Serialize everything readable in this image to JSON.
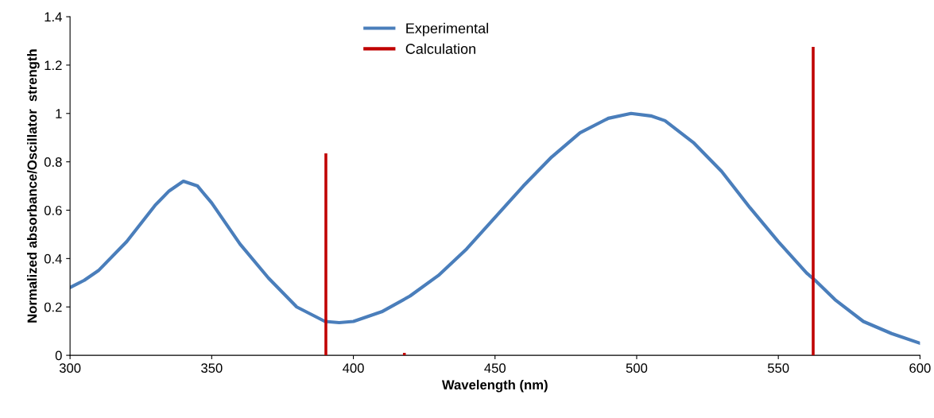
{
  "chart_data": {
    "type": "line",
    "xlabel": "Wavelength (nm)",
    "ylabel": "Normalized absorbance/Oscillator  strength",
    "xlim": [
      300,
      600
    ],
    "xticks": [
      300,
      350,
      400,
      450,
      500,
      550,
      600
    ],
    "ylim": [
      0,
      1.4
    ],
    "yticks": [
      0,
      0.2,
      0.4,
      0.6,
      0.8,
      1,
      1.2,
      1.4
    ],
    "grid": false,
    "legend": "top",
    "marker": "none",
    "line_style": "solid",
    "series": [
      {
        "name": "Experimental",
        "color": "#4a7ebb",
        "x": [
          300,
          305,
          310,
          320,
          330,
          335,
          340,
          345,
          350,
          360,
          370,
          380,
          390,
          395,
          400,
          410,
          420,
          430,
          440,
          450,
          460,
          470,
          480,
          490,
          498,
          505,
          510,
          520,
          530,
          540,
          550,
          560,
          563,
          570,
          580,
          590,
          600
        ],
        "values": [
          0.28,
          0.31,
          0.35,
          0.47,
          0.62,
          0.68,
          0.72,
          0.7,
          0.63,
          0.46,
          0.32,
          0.2,
          0.14,
          0.135,
          0.14,
          0.18,
          0.245,
          0.33,
          0.44,
          0.57,
          0.7,
          0.82,
          0.92,
          0.98,
          1.0,
          0.99,
          0.97,
          0.88,
          0.76,
          0.61,
          0.47,
          0.34,
          0.31,
          0.23,
          0.14,
          0.09,
          0.05
        ]
      },
      {
        "name": "Calculation",
        "color": "#c00000",
        "type": "bar",
        "x": [
          390.3,
          418,
          562.3
        ],
        "values": [
          0.835,
          0.01,
          1.275
        ]
      }
    ]
  }
}
